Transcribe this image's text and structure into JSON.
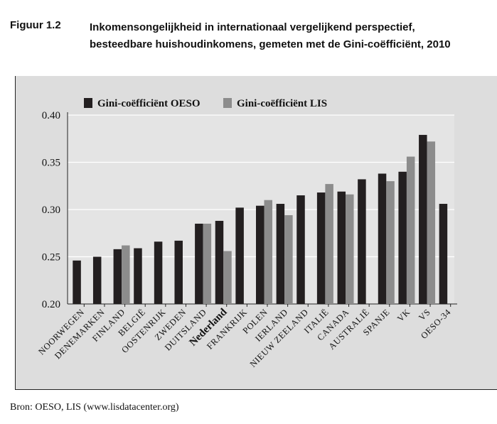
{
  "figure": {
    "label": "Figuur 1.2",
    "title_line1": "Inkomensongelijkheid in internationaal vergelijkend perspectief,",
    "title_line2": "besteedbare huishoudinkomens, gemeten met de Gini-coëfficiënt, 2010"
  },
  "source": "Bron: OESO, LIS (www.lisdatacenter.org)",
  "colors": {
    "oeso": "#231f20",
    "lis": "#8c8c8c",
    "plot_bg": "#dddddd",
    "grid": "#ffffff"
  },
  "chart_data": {
    "type": "bar",
    "title": "",
    "xlabel": "",
    "ylabel": "",
    "ylim": [
      0.2,
      0.4
    ],
    "yticks": [
      "0.40",
      "0.35",
      "0.30",
      "0.25",
      "0.20"
    ],
    "grid": true,
    "legend_position": "top-left",
    "categories": [
      "Noorwegen",
      "Denemarken",
      "Finland",
      "België",
      "Oostenrijk",
      "Zweden",
      "Duitsland",
      "Nederland",
      "Frankrijk",
      "Polen",
      "Ierland",
      "Nieuw Zeeland",
      "Italië",
      "Canada",
      "Australië",
      "Spanje",
      "VK",
      "VS",
      "OESO-34"
    ],
    "highlight": "Nederland",
    "series": [
      {
        "name": "Gini-coëfficiënt OESO",
        "values": [
          0.246,
          0.25,
          0.258,
          0.259,
          0.266,
          0.267,
          0.285,
          0.288,
          0.302,
          0.304,
          0.306,
          0.315,
          0.318,
          0.319,
          0.332,
          0.338,
          0.34,
          0.379,
          0.306
        ]
      },
      {
        "name": "Gini-coëfficiënt LIS",
        "values": [
          null,
          null,
          0.262,
          null,
          null,
          null,
          0.285,
          0.256,
          null,
          0.31,
          0.294,
          null,
          0.327,
          0.316,
          null,
          0.33,
          0.356,
          0.372,
          null
        ]
      }
    ]
  }
}
